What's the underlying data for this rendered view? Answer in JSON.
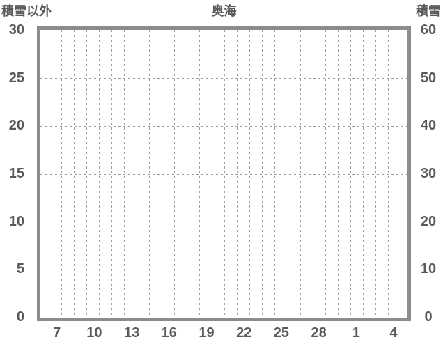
{
  "title": "奥海",
  "left_axis_title": "積雪以外",
  "right_axis_title": "積雪",
  "colors": {
    "text": "#595959",
    "frame": "#8c8c8c",
    "gridline": "#9e9e9e",
    "background": "#ffffff"
  },
  "chart_data": {
    "type": "line",
    "title": "奥海",
    "series": [],
    "x_tick_labels": [
      "7",
      "10",
      "13",
      "16",
      "19",
      "22",
      "25",
      "28",
      "1",
      "4"
    ],
    "left_axis": {
      "label": "積雪以外",
      "range": [
        0,
        30
      ],
      "ticks": [
        30,
        25,
        20,
        15,
        10,
        5,
        0
      ]
    },
    "right_axis": {
      "label": "積雪",
      "range": [
        0,
        60
      ],
      "ticks": [
        60,
        50,
        40,
        30,
        20,
        10,
        0
      ]
    },
    "grid": {
      "style": "dashed",
      "horizontal_line_values_left_axis": [
        25,
        20,
        15,
        10,
        5
      ],
      "vertical_minor_gridline_count": 29
    },
    "layout": {
      "x_gridline_start_frac": 0.0228,
      "x_gridline_step_frac": 0.0342,
      "x_label_start_frac": 0.045,
      "x_label_step_frac": 0.1019,
      "legend": "none"
    }
  }
}
